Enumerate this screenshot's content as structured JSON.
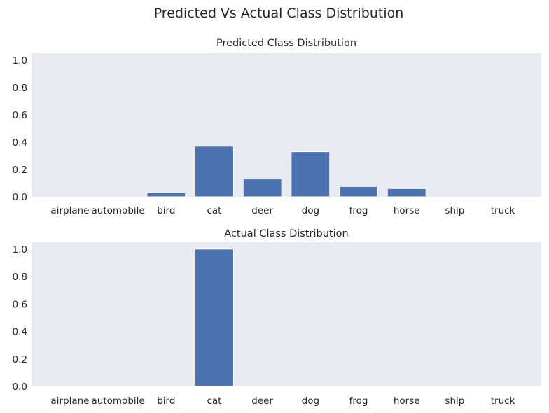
{
  "suptitle": "Predicted Vs Actual Class Distribution",
  "colors": {
    "bar": "#4c72b0",
    "axes_background": "#eaeaf2"
  },
  "chart_data": [
    {
      "type": "bar",
      "title": "Predicted Class Distribution",
      "xlabel": "",
      "ylabel": "",
      "categories": [
        "airplane",
        "automobile",
        "bird",
        "cat",
        "deer",
        "dog",
        "frog",
        "horse",
        "ship",
        "truck"
      ],
      "values": [
        0.0,
        0.0,
        0.03,
        0.37,
        0.13,
        0.33,
        0.075,
        0.06,
        0.0,
        0.0
      ],
      "ylim": [
        0,
        1.05
      ],
      "yticks": [
        "0.0",
        "0.2",
        "0.4",
        "0.6",
        "0.8",
        "1.0"
      ],
      "grid": false
    },
    {
      "type": "bar",
      "title": "Actual Class Distribution",
      "xlabel": "",
      "ylabel": "",
      "categories": [
        "airplane",
        "automobile",
        "bird",
        "cat",
        "deer",
        "dog",
        "frog",
        "horse",
        "ship",
        "truck"
      ],
      "values": [
        0.0,
        0.0,
        0.0,
        1.0,
        0.0,
        0.0,
        0.0,
        0.0,
        0.0,
        0.0
      ],
      "ylim": [
        0,
        1.05
      ],
      "yticks": [
        "0.0",
        "0.2",
        "0.4",
        "0.6",
        "0.8",
        "1.0"
      ],
      "grid": false
    }
  ]
}
